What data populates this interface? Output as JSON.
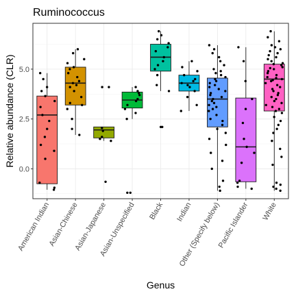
{
  "chart_data": {
    "type": "box",
    "title": "Ruminococcus",
    "xlabel": "Genus",
    "ylabel": "Relative abundance (CLR)",
    "ylim": [
      -1.5,
      7.3
    ],
    "yticks": [
      0.0,
      2.5,
      5.0
    ],
    "ytick_labels": [
      "0.0",
      "2.5",
      "5.0"
    ],
    "grid": true,
    "legend": "none",
    "categories": [
      "American Indian",
      "Asian-Chinese",
      "Asian-Japanese",
      "Asian-Unspecified",
      "Black",
      "Indian",
      "Other (Specify below)",
      "Pacific Islander",
      "White"
    ],
    "colors": [
      "#F8766D",
      "#D39200",
      "#93AA00",
      "#00BA38",
      "#00C19F",
      "#00B9E3",
      "#619CFF",
      "#DB72FB",
      "#FF61C3"
    ],
    "boxes": [
      {
        "q1": -0.75,
        "median": 2.7,
        "q3": 3.65,
        "whisker_low": -1.05,
        "whisker_high": 4.8
      },
      {
        "q1": 3.2,
        "median": 4.3,
        "q3": 5.1,
        "whisker_low": 1.7,
        "whisker_high": 6.0
      },
      {
        "q1": 1.55,
        "median": 1.95,
        "q3": 2.1,
        "whisker_low": 1.4,
        "whisker_high": 2.1
      },
      {
        "q1": 3.05,
        "median": 3.45,
        "q3": 3.85,
        "whisker_low": 2.5,
        "whisker_high": 4.1
      },
      {
        "q1": 4.9,
        "median": 5.6,
        "q3": 6.25,
        "whisker_low": 3.9,
        "whisker_high": 6.9
      },
      {
        "q1": 3.9,
        "median": 4.3,
        "q3": 4.7,
        "whisker_low": 2.9,
        "whisker_high": 5.4
      },
      {
        "q1": 2.1,
        "median": 3.5,
        "q3": 4.55,
        "whisker_low": -1.1,
        "whisker_high": 6.2
      },
      {
        "q1": -0.65,
        "median": 1.1,
        "q3": 3.55,
        "whisker_low": -1.0,
        "whisker_high": 6.1
      },
      {
        "q1": 2.9,
        "median": 4.5,
        "q3": 5.25,
        "whisker_low": -1.1,
        "whisker_high": 6.9
      }
    ],
    "points": [
      [
        -1.05,
        -0.95,
        -0.7,
        0.5,
        0.9,
        1.2,
        1.6,
        2.0,
        2.4,
        2.7,
        3.1,
        3.4,
        3.65,
        3.9,
        4.1,
        4.5,
        4.8
      ],
      [
        1.7,
        2.0,
        2.5,
        3.0,
        3.2,
        3.3,
        3.6,
        3.9,
        4.1,
        4.2,
        4.3,
        4.4,
        4.6,
        4.8,
        5.0,
        5.1,
        5.3,
        5.5,
        5.8,
        6.0
      ],
      [
        -0.65,
        1.4,
        1.5,
        1.6,
        1.9,
        2.05,
        4.1,
        4.1
      ],
      [
        -1.2,
        -1.2,
        2.5,
        2.8,
        3.0,
        3.2,
        3.4,
        3.5,
        3.7,
        3.8,
        3.9,
        4.1
      ],
      [
        2.1,
        2.1,
        3.9,
        4.2,
        4.7,
        5.0,
        5.2,
        5.4,
        5.6,
        5.9,
        6.1,
        6.3,
        6.5,
        6.7,
        6.9
      ],
      [
        2.9,
        3.2,
        3.6,
        3.9,
        4.1,
        4.2,
        4.3,
        4.4,
        4.5,
        4.7,
        4.9,
        5.1,
        5.4
      ],
      [
        -1.1,
        -0.9,
        -0.6,
        0.0,
        0.4,
        0.8,
        1.2,
        1.5,
        1.8,
        2.0,
        2.2,
        2.4,
        2.5,
        2.7,
        2.9,
        3.0,
        3.1,
        3.2,
        3.3,
        3.4,
        3.5,
        3.6,
        3.7,
        3.8,
        3.9,
        4.0,
        4.1,
        4.2,
        4.3,
        4.4,
        4.5,
        4.6,
        4.7,
        4.8,
        4.9,
        5.0,
        5.2,
        5.4,
        5.6,
        5.8,
        6.0,
        6.2
      ],
      [
        -1.0,
        -0.9,
        -0.7,
        -0.6,
        0.3,
        0.8,
        1.1,
        1.5,
        2.3,
        3.0,
        3.5,
        4.4,
        5.4,
        6.1
      ],
      [
        -1.1,
        -1.0,
        -0.9,
        -0.8,
        -0.7,
        0.2,
        0.6,
        1.0,
        1.4,
        1.8,
        2.0,
        2.2,
        2.4,
        2.6,
        2.8,
        2.9,
        3.0,
        3.1,
        3.2,
        3.3,
        3.4,
        3.5,
        3.6,
        3.7,
        3.8,
        3.9,
        4.0,
        4.1,
        4.2,
        4.3,
        4.4,
        4.45,
        4.5,
        4.55,
        4.6,
        4.7,
        4.8,
        4.9,
        5.0,
        5.05,
        5.1,
        5.2,
        5.25,
        5.3,
        5.4,
        5.5,
        5.6,
        5.7,
        5.8,
        5.9,
        6.0,
        6.1,
        6.2,
        6.4,
        6.6,
        6.9
      ]
    ]
  }
}
